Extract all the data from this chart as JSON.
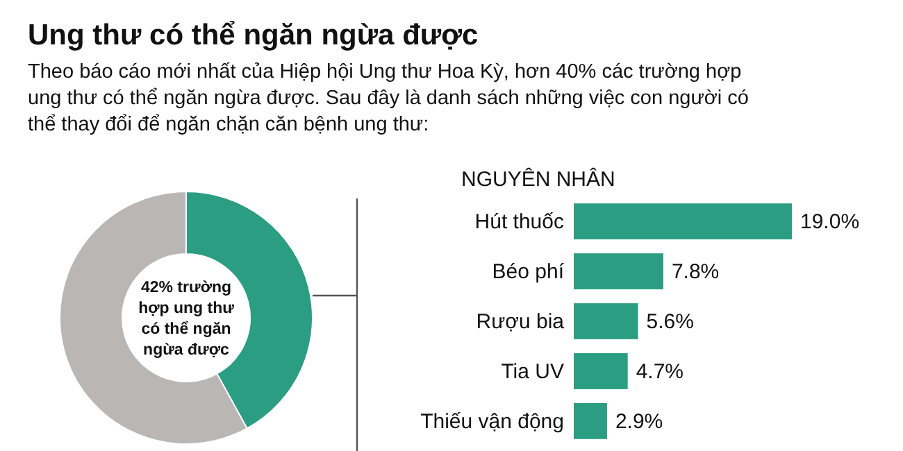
{
  "chart_data": [
    {
      "type": "donut",
      "title": "Ung thư có thể ngăn ngừa được",
      "subtitle": "Theo báo cáo mới nhất của Hiệp hội Ung thư Hoa Kỳ, hơn 40% các trường hợp ung thư có thể ngăn ngừa được. Sau đây là danh sách những việc con người có thể thay đổi để ngăn chặn căn bệnh ung thư:",
      "categories": [
        null,
        null
      ],
      "values": [
        42,
        58
      ],
      "colors": [
        "#2a9d82",
        "#b9b6b4"
      ],
      "annotations": [
        "42% trường hợp ung thư có thể ngăn ngừa được"
      ]
    },
    {
      "type": "bar",
      "orientation": "horizontal",
      "title": "NGUYÊN NHÂN",
      "categories": [
        "Hút thuốc",
        "Béo phí",
        "Rượu bia",
        "Tia UV",
        "Thiếu vận động"
      ],
      "values": [
        19.0,
        7.8,
        5.6,
        4.7,
        2.9
      ],
      "value_labels": [
        "19.0%",
        "7.8%",
        "5.6%",
        "4.7%",
        "2.9%"
      ],
      "color": "#2a9d82"
    }
  ]
}
